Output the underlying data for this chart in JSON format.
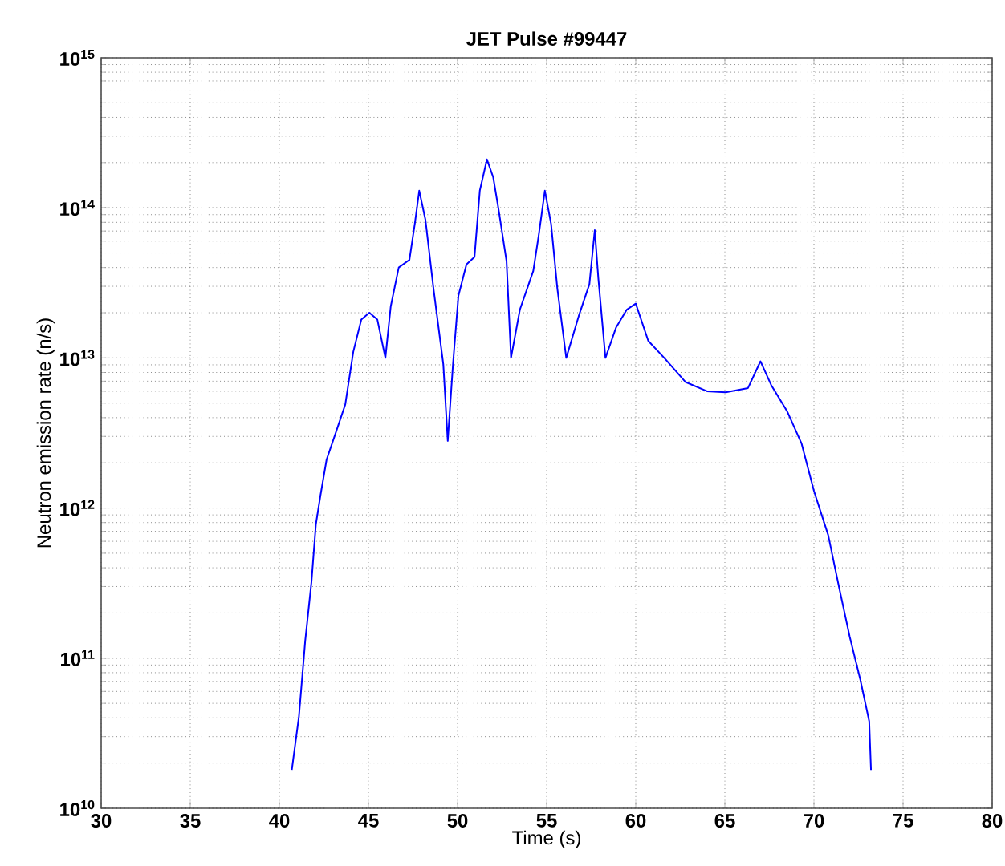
{
  "chart_data": {
    "type": "line",
    "title": "JET Pulse #99447",
    "xlabel": "Time (s)",
    "ylabel": "Neutron emission rate (n/s)",
    "x": [
      40.7,
      41.1,
      41.45,
      41.8,
      42.05,
      42.3,
      42.65,
      43.25,
      43.7,
      44.15,
      44.6,
      45.05,
      45.5,
      45.95,
      46.25,
      46.7,
      47.3,
      47.6,
      47.85,
      48.2,
      48.65,
      49.2,
      49.45,
      49.75,
      50.05,
      50.5,
      50.95,
      51.25,
      51.65,
      52.0,
      52.3,
      52.75,
      53.0,
      53.5,
      54.25,
      54.55,
      54.9,
      55.25,
      55.6,
      56.1,
      56.8,
      57.4,
      57.7,
      57.9,
      58.3,
      58.9,
      59.5,
      60.0,
      60.7,
      61.6,
      62.8,
      64.0,
      65.05,
      66.3,
      67.0,
      67.6,
      68.5,
      69.3,
      70.0,
      70.8,
      71.4,
      72.0,
      72.6,
      73.1,
      73.2
    ],
    "series": [
      {
        "color": "#0000ff",
        "values": [
          18000000000.0,
          41000000000.0,
          130000000000.0,
          320000000000.0,
          780000000000.0,
          1200000000000.0,
          2100000000000.0,
          3400000000000.0,
          4900000000000.0,
          11000000000000.0,
          18000000000000.0,
          20000000000000.0,
          18000000000000.0,
          10000000000000.0,
          22000000000000.0,
          40000000000000.0,
          45000000000000.0,
          78000000000000.0,
          130000000000000.0,
          83000000000000.0,
          29000000000000.0,
          9100000000000.0,
          2800000000000.0,
          9300000000000.0,
          26000000000000.0,
          42000000000000.0,
          47000000000000.0,
          130000000000000.0,
          210000000000000.0,
          160000000000000.0,
          98000000000000.0,
          44000000000000.0,
          10000000000000.0,
          21000000000000.0,
          38000000000000.0,
          65000000000000.0,
          130000000000000.0,
          78000000000000.0,
          29000000000000.0,
          10000000000000.0,
          19000000000000.0,
          31000000000000.0,
          71000000000000.0,
          34000000000000.0,
          10000000000000.0,
          16000000000000.0,
          21000000000000.0,
          23000000000000.0,
          13000000000000.0,
          10000000000000.0,
          6900000000000.0,
          6000000000000.0,
          5900000000000.0,
          6300000000000.0,
          9500000000000.0,
          6600000000000.0,
          4400000000000.0,
          2700000000000.0,
          1300000000000.0,
          660000000000.0,
          300000000000.0,
          140000000000.0,
          72000000000.0,
          38000000000.0,
          18000000000.0
        ]
      }
    ],
    "xlim": [
      30,
      80
    ],
    "xticks": [
      30,
      35,
      40,
      45,
      50,
      55,
      60,
      65,
      70,
      75,
      80
    ],
    "ylim": [
      10000000000.0,
      1000000000000000.0
    ],
    "yticks": [
      {
        "value": 10000000000.0,
        "label": "10$^{10}$"
      },
      {
        "value": 100000000000.0,
        "label": "10$^{11}$"
      },
      {
        "value": 1000000000000.0,
        "label": "10$^{12}$"
      },
      {
        "value": 10000000000000.0,
        "label": "10$^{13}$"
      },
      {
        "value": 100000000000000.0,
        "label": "10$^{14}$"
      },
      {
        "value": 1000000000000000.0,
        "label": "10$^{15}$"
      }
    ],
    "log": "y",
    "grid": true,
    "marker": "none",
    "line_style": "solid"
  }
}
